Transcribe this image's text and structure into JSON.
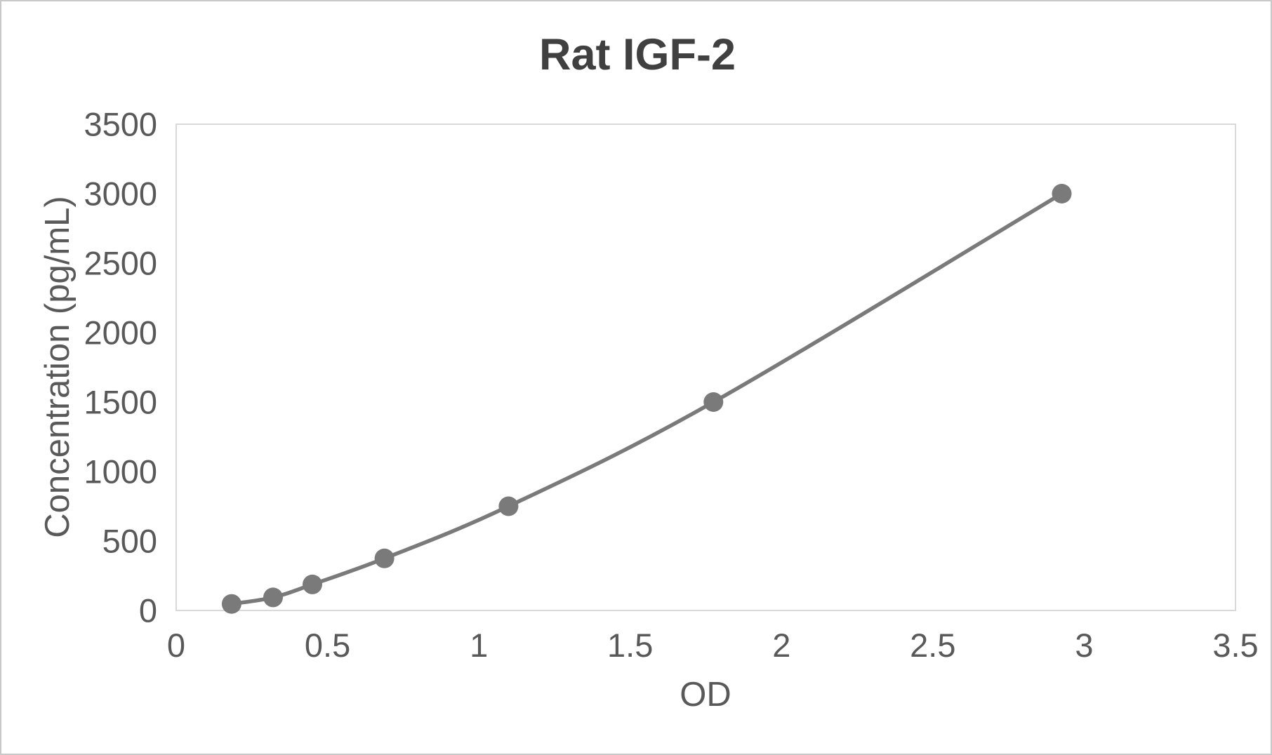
{
  "window": {
    "background": "#ffffff",
    "frame_border_color": "#c9c9c9"
  },
  "chart_data": {
    "type": "line",
    "title": "Rat IGF-2",
    "xlabel": "OD",
    "ylabel": "Concentration (pg/mL)",
    "series": [
      {
        "x": [
          0.183,
          0.32,
          0.45,
          0.688,
          1.098,
          1.775,
          2.926
        ],
        "y": [
          46.88,
          93.75,
          187.5,
          375,
          750,
          1500,
          3000
        ]
      }
    ],
    "xlim": [
      0,
      3.5
    ],
    "ylim": [
      0,
      3500
    ],
    "x_ticks": [
      "0",
      "0.5",
      "1",
      "1.5",
      "2",
      "2.5",
      "3",
      "3.5"
    ],
    "y_ticks": [
      "0",
      "500",
      "1000",
      "1500",
      "2000",
      "2500",
      "3000",
      "3500"
    ],
    "grid": false,
    "legend": "none",
    "marker": "circle",
    "marker_radius": 14,
    "line_smooth": true,
    "colors": {
      "series": "#7a7a7a",
      "axis_line": "#d9d9d9",
      "tick_label": "#595959",
      "axis_title": "#595959",
      "title": "#404040"
    }
  }
}
